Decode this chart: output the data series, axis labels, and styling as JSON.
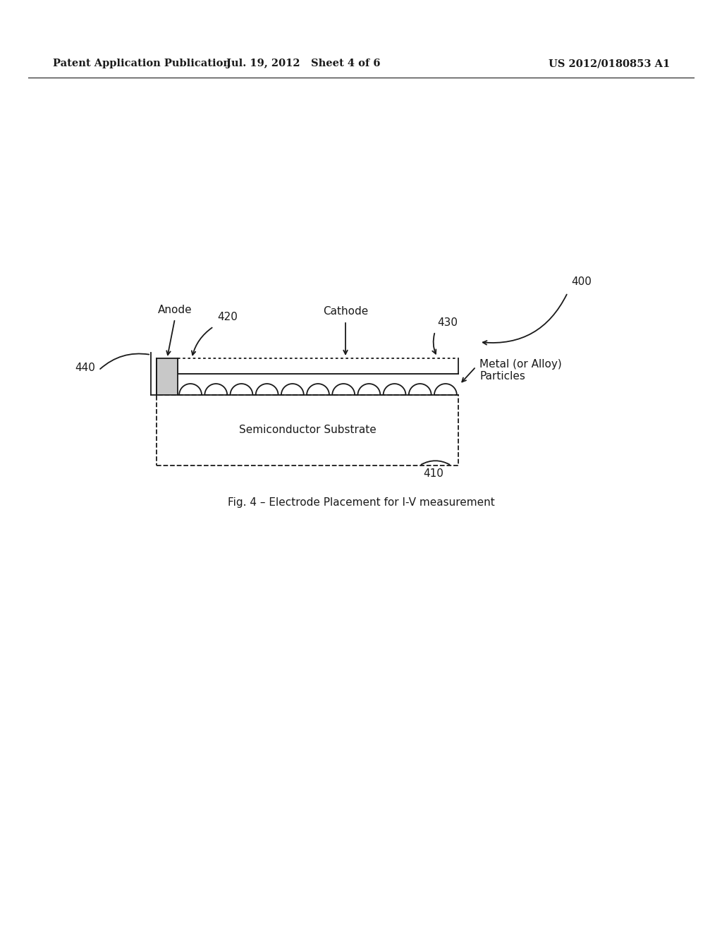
{
  "bg_color": "#ffffff",
  "text_color": "#1a1a1a",
  "header_left": "Patent Application Publication",
  "header_mid": "Jul. 19, 2012   Sheet 4 of 6",
  "header_right": "US 2012/0180853 A1",
  "caption": "Fig. 4 – Electrode Placement for I-V measurement",
  "label_400": "400",
  "label_410": "410",
  "label_420": "420",
  "label_430": "430",
  "label_440": "440",
  "label_anode": "Anode",
  "label_cathode": "Cathode",
  "label_metal": "Metal (or Alloy)\nParticles",
  "label_substrate": "Semiconductor Substrate",
  "lc": "#1a1a1a"
}
